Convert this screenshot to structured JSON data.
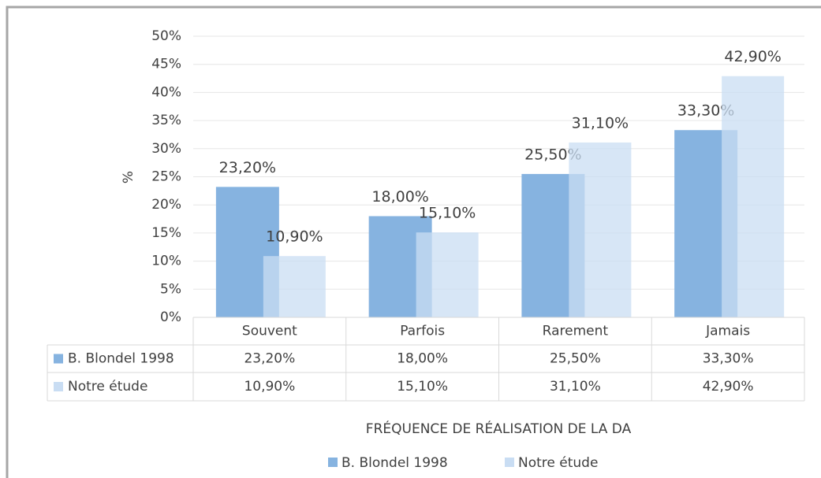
{
  "chart_data": {
    "type": "bar",
    "x_label": "FRÉQUENCE DE RÉALISATION DE LA DA",
    "y_label": "%",
    "categories": [
      "Souvent",
      "Parfois",
      "Rarement",
      "Jamais"
    ],
    "series": [
      {
        "name": "B. Blondel 1998",
        "color": "#86b3e0",
        "values": [
          23.2,
          18.0,
          25.5,
          33.3
        ],
        "value_labels": [
          "23,20%",
          "18,00%",
          "25,50%",
          "33,30%"
        ]
      },
      {
        "name": "Notre étude",
        "color": "#c9ddf3",
        "values": [
          10.9,
          15.1,
          31.1,
          42.9
        ],
        "value_labels": [
          "10,90%",
          "15,10%",
          "31,10%",
          "42,90%"
        ]
      }
    ],
    "ylim": [
      0,
      50
    ],
    "yticks": [
      {
        "value": 0,
        "label": "0%"
      },
      {
        "value": 5,
        "label": "5%"
      },
      {
        "value": 10,
        "label": "10%"
      },
      {
        "value": 15,
        "label": "15%"
      },
      {
        "value": 20,
        "label": "20%"
      },
      {
        "value": 25,
        "label": "25%"
      },
      {
        "value": 30,
        "label": "30%"
      },
      {
        "value": 35,
        "label": "35%"
      },
      {
        "value": 40,
        "label": "40%"
      },
      {
        "value": 45,
        "label": "45%"
      },
      {
        "value": 50,
        "label": "50%"
      }
    ],
    "grid": true,
    "legend": "bottom",
    "data_table": true
  }
}
